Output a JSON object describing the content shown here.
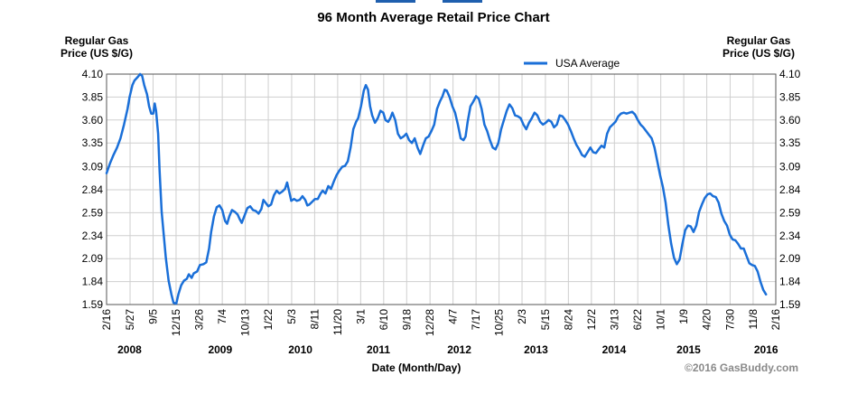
{
  "chart_data": {
    "type": "line",
    "title": "96 Month Average Retail Price Chart",
    "ylabel_left": "Regular Gas Price (US $/G)",
    "ylabel_left_lines": [
      "Regular Gas",
      "Price (US $/G)"
    ],
    "ylabel_right_lines": [
      "Regular Gas",
      "Price (US $/G)"
    ],
    "xlabel": "Date (Month/Day)",
    "ylim": [
      1.59,
      4.1
    ],
    "yticks": [
      "1.59",
      "1.84",
      "2.09",
      "2.34",
      "2.59",
      "2.84",
      "3.09",
      "3.35",
      "3.60",
      "3.85",
      "4.10"
    ],
    "x_range_months": [
      0,
      96
    ],
    "xticks": [
      {
        "label": "2/16",
        "t": 0
      },
      {
        "label": "5/27",
        "t": 3.37
      },
      {
        "label": "9/5",
        "t": 6.67
      },
      {
        "label": "12/15",
        "t": 9.97
      },
      {
        "label": "3/26",
        "t": 13.3
      },
      {
        "label": "7/4",
        "t": 16.6
      },
      {
        "label": "10/13",
        "t": 19.9
      },
      {
        "label": "1/22",
        "t": 23.2
      },
      {
        "label": "5/3",
        "t": 26.55
      },
      {
        "label": "8/11",
        "t": 29.85
      },
      {
        "label": "11/20",
        "t": 33.15
      },
      {
        "label": "3/1",
        "t": 36.45
      },
      {
        "label": "6/10",
        "t": 39.75
      },
      {
        "label": "9/18",
        "t": 43.05
      },
      {
        "label": "12/28",
        "t": 46.4
      },
      {
        "label": "4/7",
        "t": 49.7
      },
      {
        "label": "7/17",
        "t": 53.0
      },
      {
        "label": "10/25",
        "t": 56.3
      },
      {
        "label": "2/3",
        "t": 59.6
      },
      {
        "label": "5/15",
        "t": 62.95
      },
      {
        "label": "8/24",
        "t": 66.25
      },
      {
        "label": "12/2",
        "t": 69.55
      },
      {
        "label": "3/13",
        "t": 72.85
      },
      {
        "label": "6/22",
        "t": 76.2
      },
      {
        "label": "10/1",
        "t": 79.5
      },
      {
        "label": "1/9",
        "t": 82.8
      },
      {
        "label": "4/20",
        "t": 86.1
      },
      {
        "label": "7/30",
        "t": 89.45
      },
      {
        "label": "11/8",
        "t": 92.75
      },
      {
        "label": "2/16",
        "t": 96
      }
    ],
    "years": [
      {
        "label": "2008",
        "t": 3.3
      },
      {
        "label": "2009",
        "t": 16.3
      },
      {
        "label": "2010",
        "t": 27.8
      },
      {
        "label": "2011",
        "t": 39.0
      },
      {
        "label": "2012",
        "t": 50.6
      },
      {
        "label": "2013",
        "t": 61.6
      },
      {
        "label": "2014",
        "t": 72.8
      },
      {
        "label": "2015",
        "t": 83.5
      },
      {
        "label": "2016",
        "t": 94.6
      }
    ],
    "legend": "top-center",
    "series": [
      {
        "name": "USA Average",
        "color": "#1a6fd8",
        "points": [
          [
            0,
            3.02
          ],
          [
            0.5,
            3.13
          ],
          [
            1,
            3.22
          ],
          [
            1.5,
            3.3
          ],
          [
            2,
            3.4
          ],
          [
            2.5,
            3.55
          ],
          [
            3,
            3.72
          ],
          [
            3.3,
            3.85
          ],
          [
            3.7,
            3.98
          ],
          [
            4,
            4.03
          ],
          [
            4.5,
            4.07
          ],
          [
            4.8,
            4.1
          ],
          [
            5.1,
            4.08
          ],
          [
            5.4,
            3.98
          ],
          [
            5.8,
            3.88
          ],
          [
            6.1,
            3.75
          ],
          [
            6.4,
            3.67
          ],
          [
            6.7,
            3.67
          ],
          [
            6.9,
            3.78
          ],
          [
            7.1,
            3.7
          ],
          [
            7.4,
            3.45
          ],
          [
            7.6,
            3.05
          ],
          [
            7.9,
            2.6
          ],
          [
            8.2,
            2.35
          ],
          [
            8.5,
            2.1
          ],
          [
            8.9,
            1.85
          ],
          [
            9.3,
            1.7
          ],
          [
            9.6,
            1.61
          ],
          [
            10,
            1.6
          ],
          [
            10.3,
            1.7
          ],
          [
            10.7,
            1.8
          ],
          [
            11.1,
            1.85
          ],
          [
            11.5,
            1.87
          ],
          [
            11.8,
            1.92
          ],
          [
            12.2,
            1.88
          ],
          [
            12.5,
            1.93
          ],
          [
            13,
            1.95
          ],
          [
            13.4,
            2.02
          ],
          [
            13.9,
            2.03
          ],
          [
            14.3,
            2.05
          ],
          [
            14.7,
            2.2
          ],
          [
            15,
            2.38
          ],
          [
            15.4,
            2.55
          ],
          [
            15.8,
            2.65
          ],
          [
            16.2,
            2.67
          ],
          [
            16.6,
            2.62
          ],
          [
            17,
            2.5
          ],
          [
            17.3,
            2.47
          ],
          [
            17.6,
            2.55
          ],
          [
            18,
            2.62
          ],
          [
            18.4,
            2.6
          ],
          [
            18.8,
            2.57
          ],
          [
            19.1,
            2.52
          ],
          [
            19.4,
            2.48
          ],
          [
            19.8,
            2.56
          ],
          [
            20.2,
            2.64
          ],
          [
            20.6,
            2.66
          ],
          [
            21,
            2.62
          ],
          [
            21.4,
            2.61
          ],
          [
            21.8,
            2.58
          ],
          [
            22.2,
            2.63
          ],
          [
            22.5,
            2.73
          ],
          [
            22.8,
            2.7
          ],
          [
            23.2,
            2.66
          ],
          [
            23.6,
            2.68
          ],
          [
            24,
            2.78
          ],
          [
            24.4,
            2.83
          ],
          [
            24.8,
            2.8
          ],
          [
            25.2,
            2.82
          ],
          [
            25.6,
            2.85
          ],
          [
            25.9,
            2.92
          ],
          [
            26.2,
            2.82
          ],
          [
            26.5,
            2.72
          ],
          [
            26.9,
            2.74
          ],
          [
            27.3,
            2.72
          ],
          [
            27.7,
            2.73
          ],
          [
            28.1,
            2.77
          ],
          [
            28.5,
            2.73
          ],
          [
            28.8,
            2.67
          ],
          [
            29.1,
            2.68
          ],
          [
            29.5,
            2.71
          ],
          [
            29.9,
            2.74
          ],
          [
            30.3,
            2.74
          ],
          [
            30.7,
            2.8
          ],
          [
            31,
            2.83
          ],
          [
            31.4,
            2.8
          ],
          [
            31.8,
            2.88
          ],
          [
            32.2,
            2.85
          ],
          [
            32.6,
            2.93
          ],
          [
            33,
            3.0
          ],
          [
            33.4,
            3.05
          ],
          [
            33.8,
            3.09
          ],
          [
            34.2,
            3.1
          ],
          [
            34.6,
            3.15
          ],
          [
            35,
            3.3
          ],
          [
            35.4,
            3.5
          ],
          [
            35.8,
            3.58
          ],
          [
            36.1,
            3.62
          ],
          [
            36.5,
            3.75
          ],
          [
            36.9,
            3.92
          ],
          [
            37.2,
            3.98
          ],
          [
            37.5,
            3.93
          ],
          [
            37.8,
            3.75
          ],
          [
            38.1,
            3.65
          ],
          [
            38.5,
            3.57
          ],
          [
            38.9,
            3.62
          ],
          [
            39.3,
            3.7
          ],
          [
            39.7,
            3.68
          ],
          [
            40,
            3.6
          ],
          [
            40.4,
            3.58
          ],
          [
            40.7,
            3.62
          ],
          [
            41,
            3.68
          ],
          [
            41.4,
            3.6
          ],
          [
            41.8,
            3.45
          ],
          [
            42.2,
            3.4
          ],
          [
            42.6,
            3.42
          ],
          [
            43,
            3.45
          ],
          [
            43.4,
            3.38
          ],
          [
            43.8,
            3.35
          ],
          [
            44.2,
            3.4
          ],
          [
            44.6,
            3.3
          ],
          [
            45,
            3.23
          ],
          [
            45.4,
            3.32
          ],
          [
            45.8,
            3.4
          ],
          [
            46.2,
            3.42
          ],
          [
            46.6,
            3.48
          ],
          [
            47,
            3.55
          ],
          [
            47.4,
            3.72
          ],
          [
            47.8,
            3.8
          ],
          [
            48.2,
            3.86
          ],
          [
            48.5,
            3.93
          ],
          [
            48.8,
            3.92
          ],
          [
            49.2,
            3.85
          ],
          [
            49.6,
            3.75
          ],
          [
            50,
            3.68
          ],
          [
            50.4,
            3.55
          ],
          [
            50.8,
            3.4
          ],
          [
            51.2,
            3.38
          ],
          [
            51.5,
            3.42
          ],
          [
            51.8,
            3.58
          ],
          [
            52.2,
            3.75
          ],
          [
            52.6,
            3.8
          ],
          [
            53,
            3.86
          ],
          [
            53.4,
            3.83
          ],
          [
            53.8,
            3.72
          ],
          [
            54.2,
            3.55
          ],
          [
            54.6,
            3.48
          ],
          [
            55,
            3.38
          ],
          [
            55.4,
            3.3
          ],
          [
            55.8,
            3.28
          ],
          [
            56.2,
            3.35
          ],
          [
            56.6,
            3.5
          ],
          [
            57,
            3.6
          ],
          [
            57.4,
            3.7
          ],
          [
            57.8,
            3.77
          ],
          [
            58.2,
            3.73
          ],
          [
            58.6,
            3.65
          ],
          [
            59,
            3.64
          ],
          [
            59.4,
            3.62
          ],
          [
            59.8,
            3.55
          ],
          [
            60.2,
            3.5
          ],
          [
            60.6,
            3.57
          ],
          [
            61,
            3.62
          ],
          [
            61.4,
            3.68
          ],
          [
            61.8,
            3.65
          ],
          [
            62.2,
            3.58
          ],
          [
            62.6,
            3.55
          ],
          [
            63,
            3.57
          ],
          [
            63.4,
            3.6
          ],
          [
            63.8,
            3.58
          ],
          [
            64.2,
            3.52
          ],
          [
            64.6,
            3.55
          ],
          [
            65,
            3.65
          ],
          [
            65.4,
            3.64
          ],
          [
            65.8,
            3.6
          ],
          [
            66.2,
            3.55
          ],
          [
            66.6,
            3.48
          ],
          [
            67,
            3.4
          ],
          [
            67.4,
            3.33
          ],
          [
            67.8,
            3.28
          ],
          [
            68.2,
            3.22
          ],
          [
            68.6,
            3.2
          ],
          [
            69,
            3.25
          ],
          [
            69.4,
            3.3
          ],
          [
            69.8,
            3.25
          ],
          [
            70.2,
            3.24
          ],
          [
            70.6,
            3.28
          ],
          [
            71,
            3.32
          ],
          [
            71.4,
            3.3
          ],
          [
            71.8,
            3.45
          ],
          [
            72.2,
            3.52
          ],
          [
            72.6,
            3.55
          ],
          [
            73,
            3.58
          ],
          [
            73.4,
            3.64
          ],
          [
            73.8,
            3.67
          ],
          [
            74.2,
            3.68
          ],
          [
            74.6,
            3.67
          ],
          [
            75,
            3.68
          ],
          [
            75.4,
            3.69
          ],
          [
            75.8,
            3.66
          ],
          [
            76.2,
            3.6
          ],
          [
            76.6,
            3.55
          ],
          [
            77,
            3.52
          ],
          [
            77.4,
            3.48
          ],
          [
            77.8,
            3.44
          ],
          [
            78.2,
            3.4
          ],
          [
            78.6,
            3.3
          ],
          [
            79,
            3.15
          ],
          [
            79.4,
            3.0
          ],
          [
            79.8,
            2.87
          ],
          [
            80.2,
            2.7
          ],
          [
            80.6,
            2.45
          ],
          [
            81,
            2.25
          ],
          [
            81.4,
            2.1
          ],
          [
            81.8,
            2.03
          ],
          [
            82.2,
            2.08
          ],
          [
            82.6,
            2.25
          ],
          [
            83,
            2.4
          ],
          [
            83.4,
            2.45
          ],
          [
            83.8,
            2.44
          ],
          [
            84.2,
            2.38
          ],
          [
            84.6,
            2.45
          ],
          [
            85,
            2.6
          ],
          [
            85.4,
            2.68
          ],
          [
            85.8,
            2.75
          ],
          [
            86.2,
            2.79
          ],
          [
            86.6,
            2.8
          ],
          [
            87,
            2.77
          ],
          [
            87.4,
            2.76
          ],
          [
            87.8,
            2.7
          ],
          [
            88.2,
            2.58
          ],
          [
            88.6,
            2.5
          ],
          [
            89,
            2.45
          ],
          [
            89.4,
            2.35
          ],
          [
            89.8,
            2.3
          ],
          [
            90.2,
            2.29
          ],
          [
            90.6,
            2.25
          ],
          [
            91,
            2.2
          ],
          [
            91.4,
            2.2
          ],
          [
            91.8,
            2.12
          ],
          [
            92.2,
            2.04
          ],
          [
            92.6,
            2.02
          ],
          [
            93,
            2.01
          ],
          [
            93.4,
            1.95
          ],
          [
            93.8,
            1.84
          ],
          [
            94.2,
            1.75
          ],
          [
            94.6,
            1.7
          ]
        ]
      }
    ]
  },
  "copyright": "©2016 GasBuddy.com",
  "colors": {
    "line": "#1a6fd8",
    "grid": "#cfcfcf",
    "tab": "#1f5fae"
  }
}
